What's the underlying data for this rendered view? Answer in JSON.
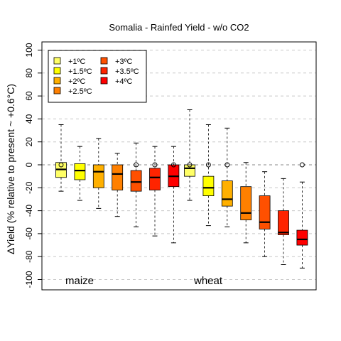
{
  "chart_data": {
    "type": "boxplot",
    "title": "Somalia - Rainfed Yield - w/o CO2",
    "ylabel": "ΔYield (% relative to present ~ +0.6°C)",
    "xlabel": "",
    "ylim": [
      -110,
      110
    ],
    "yticks": [
      -100,
      -80,
      -60,
      -40,
      -20,
      0,
      20,
      40,
      60,
      80,
      100
    ],
    "ytick_labels": [
      "-100",
      "-80",
      "-60",
      "-40",
      "-20",
      "0",
      "20",
      "40",
      "60",
      "80",
      "100"
    ],
    "grid": "horizontal dashed",
    "legend_position": "top-left",
    "groups": [
      "maize",
      "wheat"
    ],
    "series": [
      {
        "name": "+1ºC",
        "color": "#ffff66"
      },
      {
        "name": "+1.5ºC",
        "color": "#ffff00"
      },
      {
        "name": "+2ºC",
        "color": "#ffb000"
      },
      {
        "name": "+2.5ºC",
        "color": "#ff8000"
      },
      {
        "name": "+3ºC",
        "color": "#ff5000"
      },
      {
        "name": "+3.5ºC",
        "color": "#ff2400"
      },
      {
        "name": "+4ºC",
        "color": "#ff0000"
      }
    ],
    "boxes": [
      {
        "group": "maize",
        "series": 0,
        "whisker_low": -23,
        "q1": -11,
        "median": -4,
        "q3": 2,
        "whisker_high": 35,
        "point": 0
      },
      {
        "group": "maize",
        "series": 1,
        "whisker_low": -31,
        "q1": -13,
        "median": -5,
        "q3": 1,
        "whisker_high": 16,
        "point": null
      },
      {
        "group": "maize",
        "series": 2,
        "whisker_low": -38,
        "q1": -20,
        "median": -6,
        "q3": 0,
        "whisker_high": 23,
        "point": null
      },
      {
        "group": "maize",
        "series": 3,
        "whisker_low": -45,
        "q1": -22,
        "median": -8,
        "q3": 0,
        "whisker_high": 10,
        "point": null
      },
      {
        "group": "maize",
        "series": 4,
        "whisker_low": -54,
        "q1": -23,
        "median": -15,
        "q3": -5,
        "whisker_high": 19,
        "point": 0
      },
      {
        "group": "maize",
        "series": 5,
        "whisker_low": -62,
        "q1": -22,
        "median": -11,
        "q3": -3,
        "whisker_high": 16,
        "point": 0
      },
      {
        "group": "maize",
        "series": 6,
        "whisker_low": -68,
        "q1": -19,
        "median": -10,
        "q3": 0,
        "whisker_high": 16,
        "point": 0
      },
      {
        "group": "wheat",
        "series": 0,
        "whisker_low": -31,
        "q1": -10,
        "median": -3,
        "q3": 0,
        "whisker_high": 48,
        "point": 0
      },
      {
        "group": "wheat",
        "series": 1,
        "whisker_low": -53,
        "q1": -27,
        "median": -20,
        "q3": -10,
        "whisker_high": 35,
        "point": 0
      },
      {
        "group": "wheat",
        "series": 2,
        "whisker_low": -54,
        "q1": -36,
        "median": -30,
        "q3": -14,
        "whisker_high": 32,
        "point": 0
      },
      {
        "group": "wheat",
        "series": 3,
        "whisker_low": -68,
        "q1": -48,
        "median": -42,
        "q3": -19,
        "whisker_high": 2,
        "point": null
      },
      {
        "group": "wheat",
        "series": 4,
        "whisker_low": -80,
        "q1": -56,
        "median": -50,
        "q3": -27,
        "whisker_high": -6,
        "point": null
      },
      {
        "group": "wheat",
        "series": 5,
        "whisker_low": -87,
        "q1": -61,
        "median": -59,
        "q3": -40,
        "whisker_high": -12,
        "point": null
      },
      {
        "group": "wheat",
        "series": 6,
        "whisker_low": -90,
        "q1": -70,
        "median": -65,
        "q3": -57,
        "whisker_high": -15,
        "point": 0
      }
    ]
  }
}
